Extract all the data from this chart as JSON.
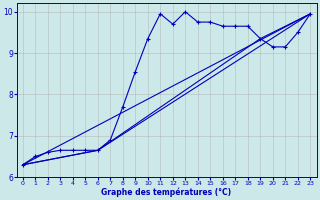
{
  "xlabel": "Graphe des températures (°C)",
  "ylabel": "",
  "bg_color": "#cce8e8",
  "line_color": "#0000bb",
  "grid_color": "#aaaaaa",
  "xlim": [
    -0.5,
    23.5
  ],
  "ylim": [
    6.0,
    10.2
  ],
  "xticks": [
    0,
    1,
    2,
    3,
    4,
    5,
    6,
    7,
    8,
    9,
    10,
    11,
    12,
    13,
    14,
    15,
    16,
    17,
    18,
    19,
    20,
    21,
    22,
    23
  ],
  "yticks": [
    6,
    7,
    8,
    9,
    10
  ],
  "line1_x": [
    0,
    1,
    2,
    3,
    4,
    5,
    6,
    7,
    8,
    9,
    10,
    11,
    12,
    13,
    14,
    15,
    16,
    17,
    18,
    19,
    20,
    21,
    22,
    23
  ],
  "line1_y": [
    6.3,
    6.5,
    6.6,
    6.65,
    6.65,
    6.65,
    6.65,
    6.9,
    7.7,
    8.55,
    9.35,
    9.95,
    9.7,
    10.0,
    9.75,
    9.75,
    9.65,
    9.65,
    9.65,
    9.35,
    9.15,
    9.15,
    9.5,
    9.95
  ],
  "line2_x": [
    0,
    23
  ],
  "line2_y": [
    6.3,
    9.95
  ],
  "line3_x": [
    0,
    6,
    23
  ],
  "line3_y": [
    6.3,
    6.65,
    9.95
  ],
  "line4_x": [
    0,
    6,
    19,
    23
  ],
  "line4_y": [
    6.3,
    6.65,
    9.35,
    9.95
  ]
}
